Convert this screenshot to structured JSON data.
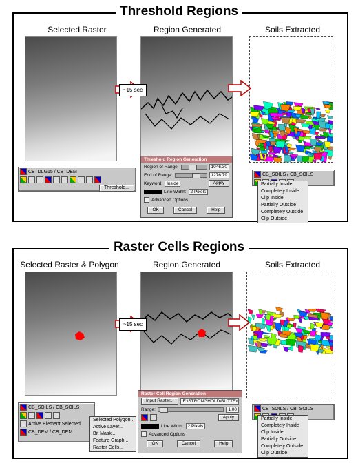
{
  "sections": [
    {
      "title": "Threshold Regions",
      "col_labels": [
        "Selected Raster",
        "Region Generated",
        "Soils Extracted"
      ],
      "time_label": "~15 sec",
      "toolbar": {
        "layer1": "CB_DLG15 / CB_DEM",
        "menu_button": "Threshold..."
      },
      "dialog": {
        "title": "Threshold Region Generation",
        "range_start_label": "Region of Range:",
        "range_start_value": "1046.30",
        "range_end_label": "End of Range:",
        "range_end_value": "1276.79",
        "keyword_label": "Keyword:",
        "keyword_value": "Inside",
        "apply": "Apply",
        "line_width_label": "Line Width:",
        "line_width_value": "2 Pixels",
        "advanced": "Advanced Options",
        "ok": "OK",
        "cancel": "Cancel",
        "help": "Help"
      },
      "soils_toolbar": {
        "layer": "CB_SOILS / CB_SOILS",
        "items": [
          "Partially Inside",
          "Completely Inside",
          "Clip Inside",
          "Partially Outside",
          "Completely Outside",
          "Clip Outside"
        ]
      }
    },
    {
      "title": "Raster Cells Regions",
      "col_labels": [
        "Selected Raster & Polygon",
        "Region Generated",
        "Soils Extracted"
      ],
      "time_label": "~15 sec",
      "toolbar": {
        "layer1": "CB_SOILS / CB_SOILS",
        "layer2": "CB_DEM / CB_DEM",
        "layer3": "Active Element Selected"
      },
      "toolbar_menu": [
        "Selected Polygon...",
        "Active Layer...",
        "Bit Mask...",
        "Feature Graph...",
        "Raster Cells..."
      ],
      "dialog": {
        "title": "Raster Cell Region Generation",
        "input_label": "Input Raster...",
        "input_value": "E:\\STRONGHOLD\\BUTTE\\CB_DEM.RVC",
        "range_label": "Range:",
        "range_value": "1.00",
        "apply": "Apply",
        "line_width_label": "Line Width:",
        "line_width_value": "2 Pixels",
        "advanced": "Advanced Options",
        "ok": "OK",
        "cancel": "Cancel",
        "help": "Help"
      },
      "soils_toolbar": {
        "layer": "CB_SOILS / CB_SOILS",
        "items": [
          "Partially Inside",
          "Completely Inside",
          "Clip Inside",
          "Partially Outside",
          "Completely Outside",
          "Clip Outside"
        ]
      }
    }
  ],
  "colors": {
    "arrow_fill": "#ffffff",
    "arrow_stroke": "#c00000",
    "polygon": "#ff0000",
    "dialog_titlebar": "#c07878",
    "soil_palette": [
      "#00c000",
      "#ff00ff",
      "#00c0ff",
      "#ffff00",
      "#ff8000",
      "#8000ff",
      "#00ffc0",
      "#ff0060",
      "#80ff00",
      "#0060ff",
      "#c08040",
      "#40c0c0"
    ]
  }
}
